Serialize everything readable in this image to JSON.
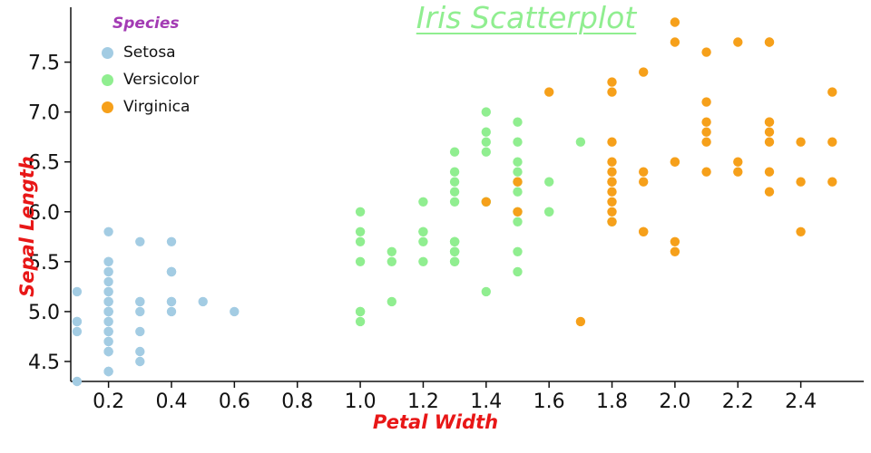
{
  "title": "Iris Scatterplot",
  "legend": {
    "title": "Species",
    "items": [
      {
        "label": "Setosa",
        "color": "#a3cce3"
      },
      {
        "label": "Versicolor",
        "color": "#90ee90"
      },
      {
        "label": "Virginica",
        "color": "#f6a01a"
      }
    ]
  },
  "colors": {
    "title": "#90ee90",
    "axis_labels": "#e81717",
    "legend_title": "#a33bb4",
    "axis_line": "#111111"
  },
  "chart_data": {
    "type": "scatter",
    "title": "Iris Scatterplot",
    "xlabel": "Petal Width",
    "ylabel": "Sepal Length",
    "xlim": [
      0.08,
      2.6
    ],
    "ylim": [
      4.3,
      8.05
    ],
    "xticks": [
      0.2,
      0.4,
      0.6,
      0.8,
      1.0,
      1.2,
      1.4,
      1.6,
      1.8,
      2.0,
      2.2,
      2.4
    ],
    "yticks": [
      4.5,
      5.0,
      5.5,
      6.0,
      6.5,
      7.0,
      7.5
    ],
    "grid": false,
    "legend_position": "top-left",
    "series": [
      {
        "name": "Setosa",
        "color": "#a3cce3",
        "points": [
          [
            0.2,
            5.1
          ],
          [
            0.2,
            4.9
          ],
          [
            0.2,
            4.7
          ],
          [
            0.2,
            4.6
          ],
          [
            0.2,
            5.0
          ],
          [
            0.4,
            5.4
          ],
          [
            0.3,
            4.6
          ],
          [
            0.2,
            5.0
          ],
          [
            0.2,
            4.4
          ],
          [
            0.1,
            4.9
          ],
          [
            0.2,
            5.4
          ],
          [
            0.2,
            4.8
          ],
          [
            0.1,
            4.8
          ],
          [
            0.1,
            4.3
          ],
          [
            0.2,
            5.8
          ],
          [
            0.4,
            5.7
          ],
          [
            0.4,
            5.4
          ],
          [
            0.3,
            5.1
          ],
          [
            0.3,
            5.7
          ],
          [
            0.3,
            5.1
          ],
          [
            0.2,
            5.4
          ],
          [
            0.4,
            5.1
          ],
          [
            0.2,
            4.6
          ],
          [
            0.5,
            5.1
          ],
          [
            0.2,
            4.8
          ],
          [
            0.2,
            5.0
          ],
          [
            0.4,
            5.0
          ],
          [
            0.2,
            5.2
          ],
          [
            0.2,
            5.2
          ],
          [
            0.2,
            4.7
          ],
          [
            0.2,
            4.8
          ],
          [
            0.4,
            5.4
          ],
          [
            0.1,
            5.2
          ],
          [
            0.2,
            5.5
          ],
          [
            0.2,
            4.9
          ],
          [
            0.2,
            5.0
          ],
          [
            0.2,
            5.5
          ],
          [
            0.1,
            4.9
          ],
          [
            0.2,
            4.4
          ],
          [
            0.2,
            5.1
          ],
          [
            0.3,
            5.0
          ],
          [
            0.3,
            4.5
          ],
          [
            0.2,
            4.4
          ],
          [
            0.6,
            5.0
          ],
          [
            0.4,
            5.1
          ],
          [
            0.3,
            4.8
          ],
          [
            0.2,
            5.1
          ],
          [
            0.2,
            4.6
          ],
          [
            0.2,
            5.3
          ],
          [
            0.2,
            5.0
          ]
        ]
      },
      {
        "name": "Versicolor",
        "color": "#90ee90",
        "points": [
          [
            1.4,
            7.0
          ],
          [
            1.5,
            6.4
          ],
          [
            1.5,
            6.9
          ],
          [
            1.3,
            5.5
          ],
          [
            1.5,
            6.5
          ],
          [
            1.3,
            5.7
          ],
          [
            1.6,
            6.3
          ],
          [
            1.0,
            4.9
          ],
          [
            1.3,
            6.6
          ],
          [
            1.4,
            5.2
          ],
          [
            1.0,
            5.0
          ],
          [
            1.5,
            5.9
          ],
          [
            1.0,
            6.0
          ],
          [
            1.4,
            6.1
          ],
          [
            1.3,
            5.6
          ],
          [
            1.4,
            6.7
          ],
          [
            1.5,
            5.6
          ],
          [
            1.0,
            5.8
          ],
          [
            1.5,
            6.2
          ],
          [
            1.1,
            5.6
          ],
          [
            1.8,
            5.9
          ],
          [
            1.3,
            6.1
          ],
          [
            1.5,
            6.3
          ],
          [
            1.2,
            6.1
          ],
          [
            1.3,
            6.4
          ],
          [
            1.4,
            6.6
          ],
          [
            1.4,
            6.8
          ],
          [
            1.7,
            6.7
          ],
          [
            1.5,
            6.0
          ],
          [
            1.0,
            5.7
          ],
          [
            1.1,
            5.5
          ],
          [
            1.0,
            5.5
          ],
          [
            1.2,
            5.8
          ],
          [
            1.6,
            6.0
          ],
          [
            1.5,
            5.4
          ],
          [
            1.6,
            6.0
          ],
          [
            1.5,
            6.7
          ],
          [
            1.3,
            6.3
          ],
          [
            1.3,
            5.6
          ],
          [
            1.3,
            5.5
          ],
          [
            1.2,
            5.5
          ],
          [
            1.4,
            6.1
          ],
          [
            1.2,
            5.8
          ],
          [
            1.0,
            5.0
          ],
          [
            1.3,
            5.6
          ],
          [
            1.2,
            5.7
          ],
          [
            1.3,
            5.7
          ],
          [
            1.3,
            6.2
          ],
          [
            1.1,
            5.1
          ],
          [
            1.3,
            5.7
          ]
        ]
      },
      {
        "name": "Virginica",
        "color": "#f6a01a",
        "points": [
          [
            2.5,
            6.3
          ],
          [
            1.9,
            5.8
          ],
          [
            2.1,
            7.1
          ],
          [
            1.8,
            6.3
          ],
          [
            2.2,
            6.5
          ],
          [
            2.1,
            7.6
          ],
          [
            1.7,
            4.9
          ],
          [
            1.8,
            7.3
          ],
          [
            1.8,
            6.7
          ],
          [
            2.5,
            7.2
          ],
          [
            2.0,
            6.5
          ],
          [
            1.9,
            6.4
          ],
          [
            2.1,
            6.8
          ],
          [
            2.0,
            5.7
          ],
          [
            2.4,
            5.8
          ],
          [
            2.3,
            6.4
          ],
          [
            1.8,
            6.5
          ],
          [
            2.2,
            7.7
          ],
          [
            2.3,
            7.7
          ],
          [
            1.5,
            6.0
          ],
          [
            2.3,
            6.9
          ],
          [
            2.0,
            5.6
          ],
          [
            2.0,
            7.7
          ],
          [
            1.8,
            6.3
          ],
          [
            2.1,
            6.7
          ],
          [
            1.8,
            7.2
          ],
          [
            1.8,
            6.2
          ],
          [
            1.8,
            6.1
          ],
          [
            2.1,
            6.4
          ],
          [
            1.6,
            7.2
          ],
          [
            1.9,
            7.4
          ],
          [
            2.0,
            7.9
          ],
          [
            2.2,
            6.4
          ],
          [
            1.5,
            6.3
          ],
          [
            1.4,
            6.1
          ],
          [
            2.3,
            7.7
          ],
          [
            2.4,
            6.3
          ],
          [
            1.8,
            6.4
          ],
          [
            1.8,
            6.0
          ],
          [
            2.1,
            6.9
          ],
          [
            2.4,
            6.7
          ],
          [
            2.3,
            6.9
          ],
          [
            1.9,
            5.8
          ],
          [
            2.3,
            6.8
          ],
          [
            2.5,
            6.7
          ],
          [
            2.3,
            6.7
          ],
          [
            1.9,
            6.3
          ],
          [
            2.0,
            6.5
          ],
          [
            2.3,
            6.2
          ],
          [
            1.8,
            5.9
          ]
        ]
      }
    ]
  }
}
